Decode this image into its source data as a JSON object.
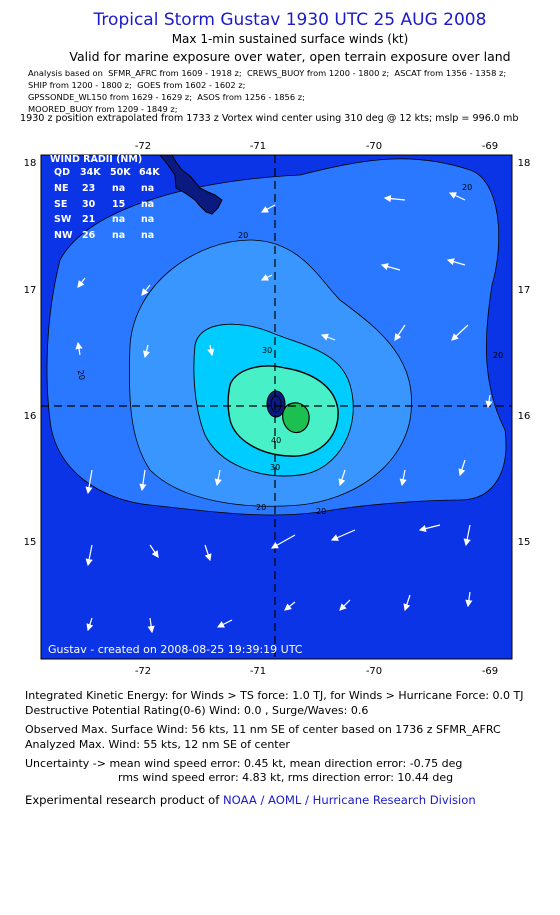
{
  "title": "Tropical Storm Gustav 1930 UTC 25 AUG 2008",
  "subtitle": "Max 1-min sustained surface winds (kt)",
  "valid_line": "Valid for marine exposure over water, open terrain exposure over land",
  "analysis_lines": [
    "Analysis based on  SFMR_AFRC from 1609 - 1918 z;  CREWS_BUOY from 1200 - 1800 z;  ASCAT from 1356 - 1358 z;",
    "SHIP from 1200 - 1800 z;  GOES from 1602 - 1602 z;",
    "GPSSONDE_WL150 from 1629 - 1629 z;  ASOS from 1256 - 1856 z;",
    "MOORED_BUOY from 1209 - 1849 z;"
  ],
  "extrapolation": "1930 z position extrapolated from 1733 z Vortex wind center using 310 deg @ 12 kts; mslp = 996.0 mb",
  "map": {
    "lon_ticks": [
      "-72",
      "-71",
      "-70",
      "-69"
    ],
    "lat_ticks": [
      "18",
      "17",
      "16",
      "15"
    ],
    "contour_labels": [
      "20",
      "20",
      "20",
      "20",
      "20",
      "20",
      "30",
      "30",
      "40"
    ],
    "credit": "Gustav - created on 2008-08-25 19:39:19 UTC",
    "colors": {
      "outer": "#0b34e6",
      "c20": "#2a78ff",
      "c30": "#00ccff",
      "c40": "#48f0c8",
      "core": "#1cc050",
      "eye": "#0a1a80"
    },
    "wind_radii": {
      "title": "WIND RADII (NM)",
      "header": [
        "QD",
        "34K",
        "50K",
        "64K"
      ],
      "rows": [
        [
          "NE",
          "23",
          "na",
          "na"
        ],
        [
          "SE",
          "30",
          "15",
          "na"
        ],
        [
          "SW",
          "21",
          "na",
          "na"
        ],
        [
          "NW",
          "26",
          "na",
          "na"
        ]
      ]
    }
  },
  "stats": {
    "ike": "Integrated Kinetic Energy:  for Winds > TS force: 1.0 TJ,  for Winds > Hurricane Force: 0.0 TJ",
    "dpr": "Destructive Potential Rating(0-6)   Wind: 0.0 , Surge/Waves: 0.6",
    "observed": "Observed Max. Surface Wind: 56 kts, 11 nm SE of center based on 1736 z SFMR_AFRC",
    "analyzed": "Analyzed Max. Wind: 55 kts, 12 nm SE of center",
    "uncertainty": "Uncertainty -> mean wind speed error: 0.45 kt,   mean direction error:  -0.75 deg",
    "rms": "rms wind speed error: 4.83 kt,   rms direction error: 10.44 deg",
    "product_prefix": "Experimental research product of",
    "product_link": "NOAA / AOML / Hurricane Research Division"
  }
}
